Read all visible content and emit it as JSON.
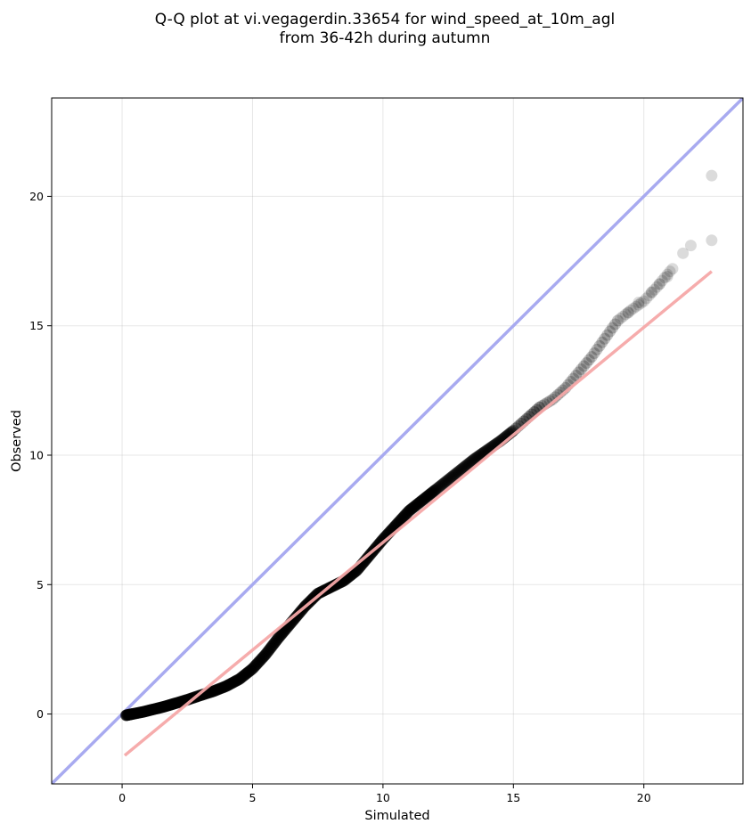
{
  "chart_data": {
    "type": "scatter",
    "title_line1": "Q-Q plot at vi.vegagerdin.33654 for wind_speed_at_10m_agl",
    "title_line2": "from 36-42h during autumn",
    "xlabel": "Simulated",
    "ylabel": "Observed",
    "xlim": [
      -2.7,
      23.8
    ],
    "ylim": [
      -2.7,
      23.8
    ],
    "xticks": [
      "0",
      "5",
      "10",
      "15",
      "20"
    ],
    "yticks": [
      "0",
      "5",
      "10",
      "15",
      "20"
    ],
    "grid": true,
    "identity_line": {
      "from": [
        -2.7,
        -2.7
      ],
      "to": [
        23.8,
        23.8
      ],
      "color": "#a8aaf0"
    },
    "fit_line": {
      "from": [
        0.1,
        -1.6
      ],
      "to": [
        22.6,
        17.1
      ],
      "color": "#f5a8a8"
    },
    "point_color": "#000000",
    "quantile_curve": [
      [
        0.15,
        -0.05
      ],
      [
        0.4,
        0.0
      ],
      [
        0.8,
        0.08
      ],
      [
        1.2,
        0.18
      ],
      [
        1.6,
        0.28
      ],
      [
        2.0,
        0.4
      ],
      [
        2.5,
        0.55
      ],
      [
        3.0,
        0.72
      ],
      [
        3.5,
        0.88
      ],
      [
        4.0,
        1.08
      ],
      [
        4.5,
        1.35
      ],
      [
        5.0,
        1.75
      ],
      [
        5.5,
        2.3
      ],
      [
        6.0,
        2.95
      ],
      [
        6.5,
        3.55
      ],
      [
        7.0,
        4.15
      ],
      [
        7.5,
        4.65
      ],
      [
        8.0,
        4.9
      ],
      [
        8.5,
        5.15
      ],
      [
        9.0,
        5.55
      ],
      [
        9.5,
        6.15
      ],
      [
        10.0,
        6.75
      ],
      [
        10.5,
        7.3
      ],
      [
        11.0,
        7.85
      ],
      [
        11.5,
        8.25
      ],
      [
        12.0,
        8.65
      ],
      [
        12.5,
        9.05
      ],
      [
        13.0,
        9.45
      ],
      [
        13.5,
        9.85
      ],
      [
        14.0,
        10.2
      ],
      [
        14.5,
        10.55
      ],
      [
        15.0,
        10.95
      ],
      [
        15.5,
        11.4
      ],
      [
        16.0,
        11.85
      ],
      [
        16.5,
        12.15
      ],
      [
        17.0,
        12.6
      ],
      [
        17.5,
        13.2
      ],
      [
        18.0,
        13.8
      ],
      [
        18.5,
        14.5
      ],
      [
        19.0,
        15.2
      ],
      [
        19.5,
        15.6
      ],
      [
        20.0,
        15.95
      ],
      [
        20.5,
        16.5
      ],
      [
        21.0,
        17.1
      ]
    ],
    "tail_points": [
      [
        19.4,
        15.5
      ],
      [
        19.8,
        15.9
      ],
      [
        20.3,
        16.3
      ],
      [
        20.6,
        16.6
      ],
      [
        20.9,
        16.9
      ],
      [
        21.1,
        17.2
      ],
      [
        21.5,
        17.8
      ],
      [
        21.8,
        18.1
      ],
      [
        22.6,
        18.3
      ],
      [
        22.6,
        20.8
      ]
    ]
  }
}
